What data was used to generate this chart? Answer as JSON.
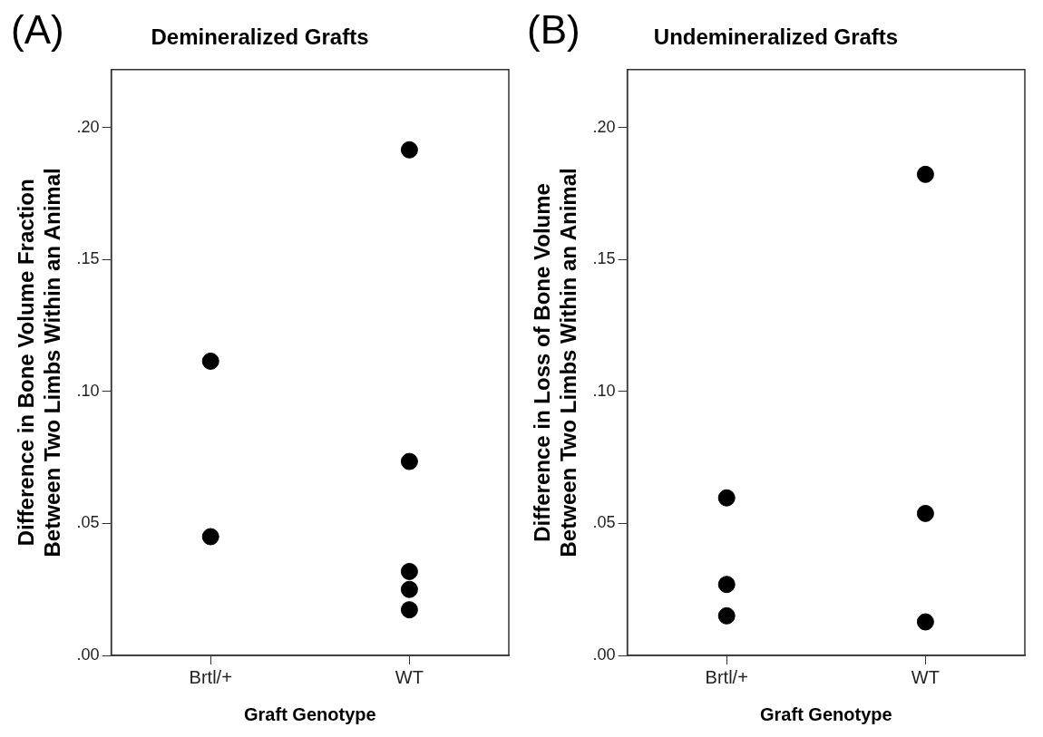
{
  "chart_data": [
    {
      "type": "scatter",
      "title": "Demineralized Grafts",
      "xlabel": "Graft Genotype",
      "ylabel": "Difference in Bone Volume Fraction Between Two Limbs Within an Animal",
      "annotations": [
        "(A)"
      ],
      "categories": [
        "Brtl/+",
        "WT"
      ],
      "series": [
        {
          "color": "#000000",
          "x": [
            "Brtl/+",
            "Brtl/+",
            "WT",
            "WT",
            "WT",
            "WT",
            "WT"
          ],
          "values": [
            0.1115,
            0.045,
            0.1916,
            0.0735,
            0.0318,
            0.025,
            0.0173
          ]
        }
      ],
      "ylim": [
        0,
        0.222
      ],
      "yticks": [
        {
          "value": 0,
          "label": ".00"
        },
        {
          "value": 0.05,
          "label": ".05"
        },
        {
          "value": 0.1,
          "label": ".10"
        },
        {
          "value": 0.15,
          "label": ".15"
        },
        {
          "value": 0.2,
          "label": ".20"
        }
      ],
      "grid": false,
      "legend": false,
      "marker": "circle"
    },
    {
      "type": "scatter",
      "title": "Undemineralized Grafts",
      "xlabel": "Graft Genotype",
      "ylabel": "Difference in Loss of Bone Volume Between Two Limbs Within an Animal",
      "annotations": [
        "(B)"
      ],
      "categories": [
        "Brtl/+",
        "WT"
      ],
      "series": [
        {
          "color": "#000000",
          "x": [
            "Brtl/+",
            "Brtl/+",
            "Brtl/+",
            "WT",
            "WT",
            "WT"
          ],
          "values": [
            0.0597,
            0.0269,
            0.015,
            0.1823,
            0.0538,
            0.0127
          ]
        }
      ],
      "ylim": [
        0,
        0.222
      ],
      "yticks": [
        {
          "value": 0,
          "label": ".00"
        },
        {
          "value": 0.05,
          "label": ".05"
        },
        {
          "value": 0.1,
          "label": ".10"
        },
        {
          "value": 0.15,
          "label": ".15"
        },
        {
          "value": 0.2,
          "label": ".20"
        }
      ],
      "grid": false,
      "legend": false,
      "marker": "circle"
    }
  ]
}
